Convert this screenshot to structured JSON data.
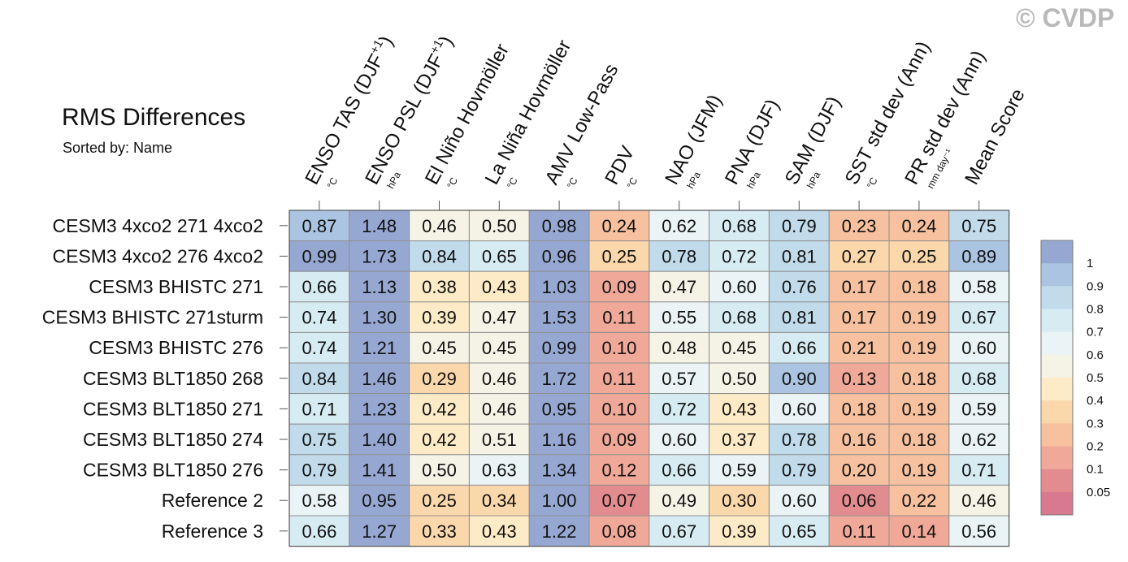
{
  "watermark": "© CVDP",
  "chart_data": {
    "type": "heatmap",
    "title": "RMS Differences",
    "subtitle": "Sorted by: Name",
    "columns": [
      {
        "label": "ENSO TAS (DJF",
        "sup": "+1",
        "tail": ")",
        "unit": "°C"
      },
      {
        "label": "ENSO PSL (DJF",
        "sup": "+1",
        "tail": ")",
        "unit": "hPa"
      },
      {
        "label": "El Niño Hovmöller",
        "sup": "",
        "tail": "",
        "unit": "°C"
      },
      {
        "label": "La Niña Hovmöller",
        "sup": "",
        "tail": "",
        "unit": "°C"
      },
      {
        "label": "AMV Low-Pass",
        "sup": "",
        "tail": "",
        "unit": "°C"
      },
      {
        "label": "PDV",
        "sup": "",
        "tail": "",
        "unit": "°C"
      },
      {
        "label": "NAO (JFM)",
        "sup": "",
        "tail": "",
        "unit": "hPa"
      },
      {
        "label": "PNA (DJF)",
        "sup": "",
        "tail": "",
        "unit": "hPa"
      },
      {
        "label": "SAM (DJF)",
        "sup": "",
        "tail": "",
        "unit": "hPa"
      },
      {
        "label": "SST std dev (Ann)",
        "sup": "",
        "tail": "",
        "unit": "°C"
      },
      {
        "label": "PR std dev (Ann)",
        "sup": "",
        "tail": "",
        "unit": "mm day⁻¹"
      },
      {
        "label": "Mean Score",
        "sup": "",
        "tail": "",
        "unit": ""
      }
    ],
    "rows": [
      "CESM3 4xco2 271 4xco2",
      "CESM3 4xco2 276 4xco2",
      "CESM3 BHISTC 271",
      "CESM3 BHISTC 271sturm",
      "CESM3 BHISTC 276",
      "CESM3 BLT1850 268",
      "CESM3 BLT1850 271",
      "CESM3 BLT1850 274",
      "CESM3 BLT1850 276",
      "Reference 2",
      "Reference 3"
    ],
    "values": [
      [
        0.87,
        1.48,
        0.46,
        0.5,
        0.98,
        0.24,
        0.62,
        0.68,
        0.79,
        0.23,
        0.24,
        0.75
      ],
      [
        0.99,
        1.73,
        0.84,
        0.65,
        0.96,
        0.25,
        0.78,
        0.72,
        0.81,
        0.27,
        0.25,
        0.89
      ],
      [
        0.66,
        1.13,
        0.38,
        0.43,
        1.03,
        0.09,
        0.47,
        0.6,
        0.76,
        0.17,
        0.18,
        0.58
      ],
      [
        0.74,
        1.3,
        0.39,
        0.47,
        1.53,
        0.11,
        0.55,
        0.68,
        0.81,
        0.17,
        0.19,
        0.67
      ],
      [
        0.74,
        1.21,
        0.45,
        0.45,
        0.99,
        0.1,
        0.48,
        0.45,
        0.66,
        0.21,
        0.19,
        0.6
      ],
      [
        0.84,
        1.46,
        0.29,
        0.46,
        1.72,
        0.11,
        0.57,
        0.5,
        0.9,
        0.13,
        0.18,
        0.68
      ],
      [
        0.71,
        1.23,
        0.42,
        0.46,
        0.95,
        0.1,
        0.72,
        0.43,
        0.6,
        0.18,
        0.19,
        0.59
      ],
      [
        0.75,
        1.4,
        0.42,
        0.51,
        1.16,
        0.09,
        0.6,
        0.37,
        0.78,
        0.16,
        0.18,
        0.62
      ],
      [
        0.79,
        1.41,
        0.5,
        0.63,
        1.34,
        0.12,
        0.66,
        0.59,
        0.79,
        0.2,
        0.19,
        0.71
      ],
      [
        0.58,
        0.95,
        0.25,
        0.34,
        1.0,
        0.07,
        0.49,
        0.3,
        0.6,
        0.06,
        0.22,
        0.46
      ],
      [
        0.66,
        1.27,
        0.33,
        0.43,
        1.22,
        0.08,
        0.67,
        0.39,
        0.65,
        0.11,
        0.14,
        0.56
      ]
    ],
    "colorbar": {
      "labels": [
        "1",
        "0.9",
        "0.8",
        "0.7",
        "0.6",
        "0.5",
        "0.4",
        "0.3",
        "0.2",
        "0.1",
        "0.05"
      ],
      "bins": [
        {
          "min": 0.95,
          "color": "#96a8d2"
        },
        {
          "min": 0.85,
          "color": "#aac4e1"
        },
        {
          "min": 0.75,
          "color": "#c1dbeb"
        },
        {
          "min": 0.65,
          "color": "#d7ebf3"
        },
        {
          "min": 0.55,
          "color": "#eaf3f5"
        },
        {
          "min": 0.45,
          "color": "#f5f3e6"
        },
        {
          "min": 0.35,
          "color": "#fcebc6"
        },
        {
          "min": 0.25,
          "color": "#fbd8ab"
        },
        {
          "min": 0.15,
          "color": "#f7c09e"
        },
        {
          "min": 0.075,
          "color": "#f0a898"
        },
        {
          "min": 0.025,
          "color": "#e38c8f"
        },
        {
          "min": -1,
          "color": "#d87990"
        }
      ]
    }
  }
}
